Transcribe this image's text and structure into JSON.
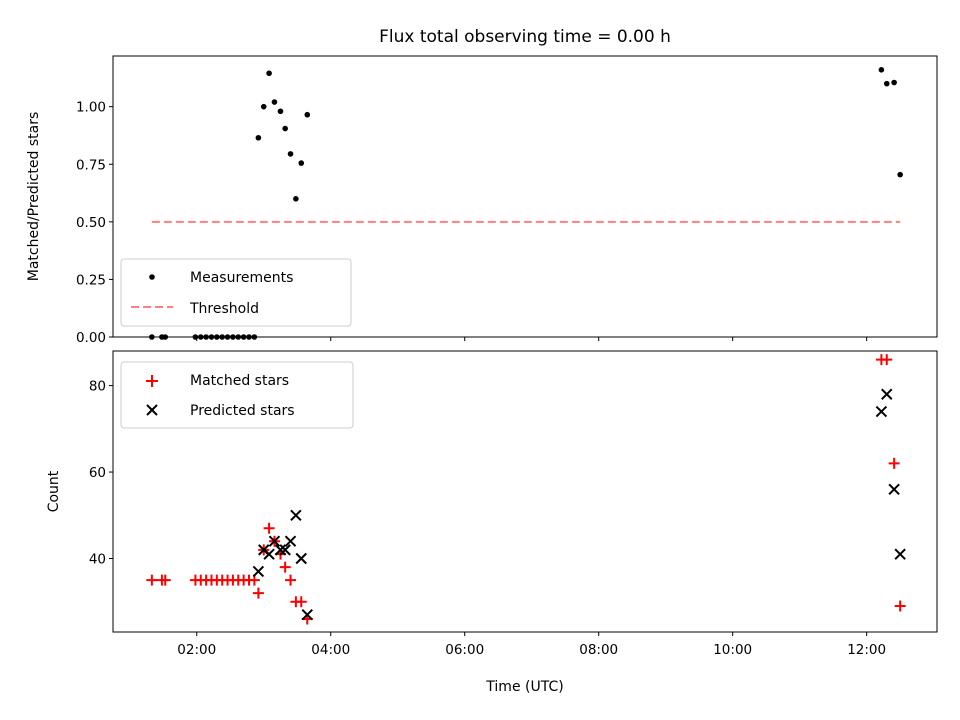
{
  "chart_data": [
    {
      "type": "scatter",
      "title": "Flux total observing time = 0.00 h",
      "xlabel": "",
      "ylabel": "Matched/Predicted stars",
      "ylim": [
        0,
        1.22
      ],
      "yticks": [
        "0.00",
        "0.25",
        "0.50",
        "0.75",
        "1.00"
      ],
      "ytick_values": [
        0,
        0.25,
        0.5,
        0.75,
        1.0
      ],
      "x_unit": "hours UTC",
      "legend_position": "lower-left",
      "series": [
        {
          "name": "Measurements",
          "marker": "dot",
          "color": "#000000",
          "points": [
            [
              1.33,
              0.0
            ],
            [
              1.48,
              0.0
            ],
            [
              1.53,
              0.0
            ],
            [
              1.98,
              0.0
            ],
            [
              2.06,
              0.0
            ],
            [
              2.14,
              0.0
            ],
            [
              2.22,
              0.0
            ],
            [
              2.3,
              0.0
            ],
            [
              2.38,
              0.0
            ],
            [
              2.46,
              0.0
            ],
            [
              2.54,
              0.0
            ],
            [
              2.62,
              0.0
            ],
            [
              2.7,
              0.0
            ],
            [
              2.78,
              0.0
            ],
            [
              2.86,
              0.0
            ],
            [
              2.92,
              0.865
            ],
            [
              3.0,
              1.0
            ],
            [
              3.08,
              1.145
            ],
            [
              3.16,
              1.02
            ],
            [
              3.25,
              0.98
            ],
            [
              3.32,
              0.905
            ],
            [
              3.4,
              0.795
            ],
            [
              3.48,
              0.6
            ],
            [
              3.56,
              0.755
            ],
            [
              3.65,
              0.965
            ],
            [
              12.22,
              1.16
            ],
            [
              12.3,
              1.1
            ],
            [
              12.41,
              1.105
            ],
            [
              12.5,
              0.705
            ]
          ]
        },
        {
          "name": "Threshold",
          "style": "dashed",
          "color": "#ff7f7f",
          "points": [
            [
              1.33,
              0.5
            ],
            [
              12.5,
              0.5
            ]
          ]
        }
      ]
    },
    {
      "type": "scatter",
      "title": "",
      "xlabel": "Time (UTC)",
      "ylabel": "Count",
      "ylim": [
        23,
        88
      ],
      "yticks": [
        "40",
        "60",
        "80"
      ],
      "ytick_values": [
        40,
        60,
        80
      ],
      "xlim": [
        0.75,
        13.05
      ],
      "xticks": [
        "02:00",
        "04:00",
        "06:00",
        "08:00",
        "10:00",
        "12:00"
      ],
      "xtick_values": [
        2,
        4,
        6,
        8,
        10,
        12
      ],
      "legend_position": "upper-left",
      "series": [
        {
          "name": "Matched stars",
          "marker": "plus",
          "color": "#ff0000",
          "points": [
            [
              1.33,
              35
            ],
            [
              1.48,
              35
            ],
            [
              1.53,
              35
            ],
            [
              1.98,
              35
            ],
            [
              2.06,
              35
            ],
            [
              2.14,
              35
            ],
            [
              2.22,
              35
            ],
            [
              2.3,
              35
            ],
            [
              2.38,
              35
            ],
            [
              2.46,
              35
            ],
            [
              2.54,
              35
            ],
            [
              2.62,
              35
            ],
            [
              2.7,
              35
            ],
            [
              2.78,
              35
            ],
            [
              2.86,
              35
            ],
            [
              2.92,
              32
            ],
            [
              3.0,
              42
            ],
            [
              3.08,
              47
            ],
            [
              3.16,
              44
            ],
            [
              3.25,
              41
            ],
            [
              3.32,
              38
            ],
            [
              3.4,
              35
            ],
            [
              3.48,
              30
            ],
            [
              3.56,
              30
            ],
            [
              3.65,
              26
            ],
            [
              12.22,
              86
            ],
            [
              12.3,
              86
            ],
            [
              12.41,
              62
            ],
            [
              12.5,
              29
            ]
          ]
        },
        {
          "name": "Predicted stars",
          "marker": "x",
          "color": "#000000",
          "points": [
            [
              2.92,
              37
            ],
            [
              3.0,
              42
            ],
            [
              3.08,
              41
            ],
            [
              3.16,
              44
            ],
            [
              3.25,
              42
            ],
            [
              3.32,
              42
            ],
            [
              3.4,
              44
            ],
            [
              3.48,
              50
            ],
            [
              3.56,
              40
            ],
            [
              3.65,
              27
            ],
            [
              12.22,
              74
            ],
            [
              12.3,
              78
            ],
            [
              12.41,
              56
            ],
            [
              12.5,
              41
            ]
          ]
        }
      ]
    }
  ]
}
